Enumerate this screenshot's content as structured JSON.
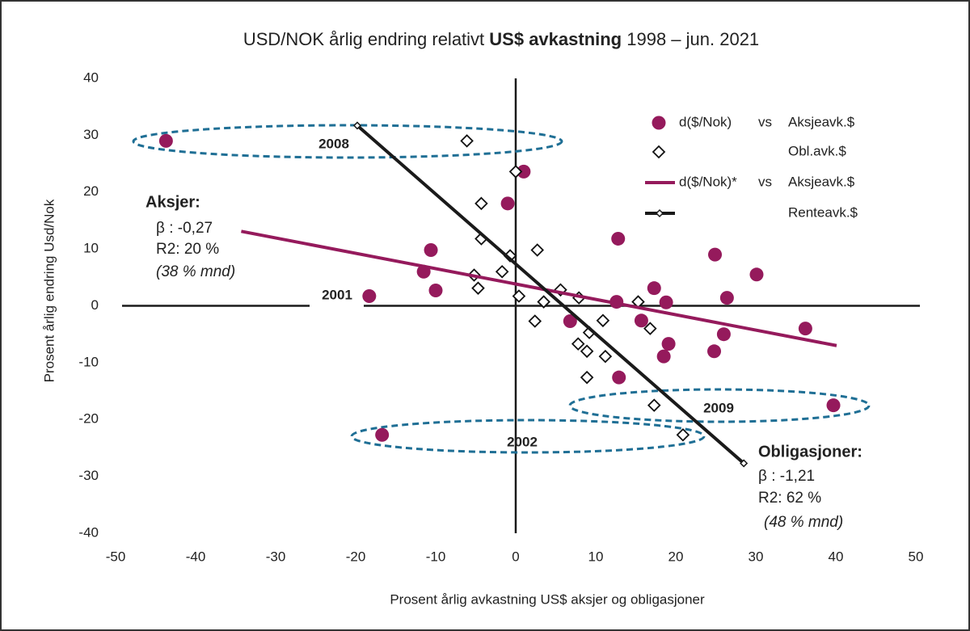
{
  "chart_data": {
    "type": "scatter",
    "title_parts": [
      "USD/NOK årlig endring relativt ",
      "US$ avkastning",
      " 1998 – jun. 2021"
    ],
    "x_label": "Prosent årlig avkastning US$ aksjer og obligasjoner",
    "y_label": "Prosent årlig endring Usd/Nok",
    "xlim": [
      -50,
      50
    ],
    "ylim": [
      -40,
      40
    ],
    "xticks": [
      -50,
      -40,
      -30,
      -20,
      -10,
      0,
      10,
      20,
      30,
      40,
      50
    ],
    "yticks": [
      -40,
      -30,
      -20,
      -10,
      0,
      10,
      20,
      30,
      40
    ],
    "series": [
      {
        "name": "Aksjeavk.$",
        "legend_prefix": [
          "d($/Nok)",
          "vs"
        ],
        "mode": "markers",
        "marker": "circle",
        "color": "#951a5c",
        "x": [
          -43.7,
          1.0,
          -1.0,
          -10.6,
          -11.5,
          -10.0,
          -18.3,
          12.8,
          24.9,
          30.1,
          12.6,
          17.3,
          18.8,
          26.4,
          6.8,
          15.7,
          26.0,
          36.2,
          19.1,
          18.5,
          24.8,
          12.9,
          39.7,
          -16.7
        ],
        "values": [
          29.0,
          23.6,
          18.0,
          9.8,
          6.0,
          2.7,
          1.7,
          11.8,
          9.0,
          5.5,
          0.7,
          3.1,
          0.6,
          1.4,
          -2.7,
          -2.6,
          -5.0,
          -4.0,
          -6.7,
          -8.9,
          -8.0,
          -12.6,
          -17.5,
          -22.7
        ]
      },
      {
        "name": "Obl.avk.$",
        "mode": "markers",
        "marker": "diamond",
        "color": "#111111",
        "x": [
          -6.1,
          0.0,
          -4.3,
          -4.3,
          2.7,
          -0.7,
          -5.2,
          -1.7,
          -4.7,
          0.4,
          3.5,
          5.6,
          7.9,
          2.4,
          10.9,
          9.2,
          7.8,
          8.9,
          11.2,
          8.9,
          15.3,
          16.8,
          17.3,
          20.9
        ],
        "values": [
          29.0,
          23.6,
          18.0,
          11.8,
          9.8,
          8.8,
          5.4,
          6.0,
          3.1,
          1.7,
          0.7,
          2.8,
          1.4,
          -2.7,
          -2.6,
          -4.7,
          -6.7,
          -8.0,
          -8.9,
          -12.6,
          0.7,
          -4.0,
          -17.5,
          -22.7
        ]
      },
      {
        "name": "Aksjeavk.$",
        "legend_prefix": [
          "d($/Nok)*",
          "vs"
        ],
        "mode": "line",
        "color": "#951a5c",
        "x": [
          -34.3,
          40.1
        ],
        "values": [
          13.1,
          -7.0
        ]
      },
      {
        "name": "Renteavk.$",
        "mode": "line",
        "marker": "diamond",
        "color": "#1a1a1a",
        "x": [
          -19.8,
          28.5
        ],
        "values": [
          31.7,
          -27.7
        ]
      }
    ],
    "annotations": {
      "aksjer": [
        "Aksjer:",
        "β  : -0,27",
        "R2: 20 %",
        "(38 % mnd)"
      ],
      "obligasjoner": [
        "Obligasjoner:",
        "β  : -1,21",
        "R2: 62 %",
        "(48 % mnd)"
      ],
      "years": [
        "2008",
        "2001",
        "2002",
        "2009"
      ]
    }
  }
}
